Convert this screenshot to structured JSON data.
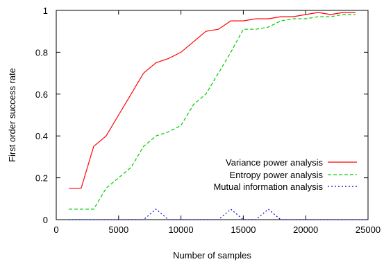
{
  "chart_data": {
    "type": "line",
    "title": "",
    "xlabel": "Number of samples",
    "ylabel": "First order success rate",
    "xlim": [
      0,
      25000
    ],
    "ylim": [
      0,
      1
    ],
    "xticks": [
      0,
      5000,
      10000,
      15000,
      20000,
      25000
    ],
    "yticks": [
      0,
      0.2,
      0.4,
      0.6,
      0.8,
      1
    ],
    "xtick_labels": [
      "0",
      "5000",
      "10000",
      "15000",
      "20000",
      "25000"
    ],
    "ytick_labels": [
      "0",
      "0.2",
      "0.4",
      "0.6",
      "0.8",
      "1"
    ],
    "grid": false,
    "legend_position": "lower-right",
    "series": [
      {
        "name": "Variance power analysis",
        "color": "#ff0000",
        "dash": "solid",
        "x": [
          1000,
          2000,
          3000,
          4000,
          5000,
          6000,
          7000,
          8000,
          9000,
          10000,
          11000,
          12000,
          13000,
          14000,
          15000,
          16000,
          17000,
          18000,
          19000,
          20000,
          21000,
          22000,
          23000,
          24000
        ],
        "y": [
          0.15,
          0.15,
          0.35,
          0.4,
          0.5,
          0.6,
          0.7,
          0.75,
          0.77,
          0.8,
          0.85,
          0.9,
          0.91,
          0.95,
          0.95,
          0.96,
          0.96,
          0.97,
          0.97,
          0.98,
          0.99,
          0.98,
          0.99,
          0.99
        ]
      },
      {
        "name": "Entropy power analysis",
        "color": "#00cc00",
        "dash": "dashed",
        "x": [
          1000,
          2000,
          3000,
          4000,
          5000,
          6000,
          7000,
          8000,
          9000,
          10000,
          11000,
          12000,
          13000,
          14000,
          15000,
          16000,
          17000,
          18000,
          19000,
          20000,
          21000,
          22000,
          23000,
          24000
        ],
        "y": [
          0.05,
          0.05,
          0.05,
          0.15,
          0.2,
          0.25,
          0.35,
          0.4,
          0.42,
          0.45,
          0.55,
          0.6,
          0.7,
          0.8,
          0.91,
          0.91,
          0.92,
          0.95,
          0.96,
          0.96,
          0.97,
          0.97,
          0.98,
          0.98
        ]
      },
      {
        "name": "Mutual information analysis",
        "color": "#0000cc",
        "dash": "dotted",
        "x": [
          1000,
          2000,
          3000,
          4000,
          5000,
          6000,
          7000,
          8000,
          9000,
          10000,
          11000,
          12000,
          13000,
          14000,
          15000,
          16000,
          17000,
          18000,
          19000,
          20000,
          21000,
          22000,
          23000,
          24000,
          25000
        ],
        "y": [
          0,
          0,
          0,
          0,
          0,
          0,
          0,
          0.05,
          0,
          0,
          0,
          0,
          0,
          0.05,
          0,
          0,
          0.05,
          0,
          0,
          0,
          0,
          0,
          0,
          0,
          0
        ]
      }
    ]
  }
}
